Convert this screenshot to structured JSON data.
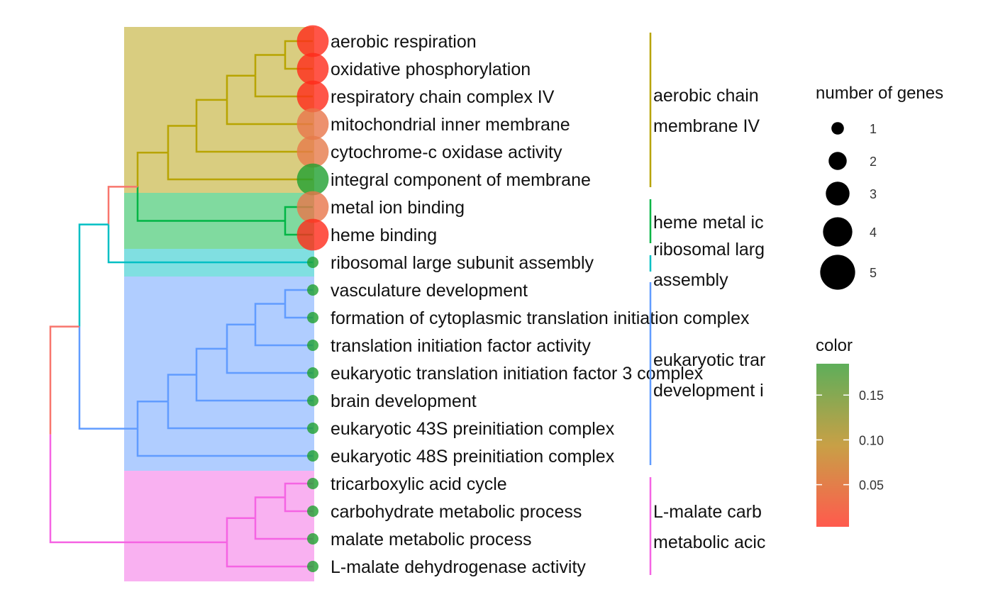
{
  "chart_data": {
    "type": "tree",
    "terms": [
      {
        "label": "aerobic respiration",
        "genes": 5,
        "color_value": 0.005
      },
      {
        "label": "oxidative phosphorylation",
        "genes": 5,
        "color_value": 0.005
      },
      {
        "label": "respiratory chain complex IV",
        "genes": 5,
        "color_value": 0.005
      },
      {
        "label": "mitochondrial inner membrane",
        "genes": 5,
        "color_value": 0.04
      },
      {
        "label": "cytochrome-c oxidase activity",
        "genes": 5,
        "color_value": 0.045
      },
      {
        "label": "integral component of membrane",
        "genes": 5,
        "color_value": 0.185
      },
      {
        "label": "metal ion binding",
        "genes": 5,
        "color_value": 0.04
      },
      {
        "label": "heme binding",
        "genes": 5,
        "color_value": 0.005
      },
      {
        "label": "ribosomal large subunit assembly",
        "genes": 1,
        "color_value": 0.185
      },
      {
        "label": "vasculature development",
        "genes": 1,
        "color_value": 0.185
      },
      {
        "label": "formation of cytoplasmic translation initiation complex",
        "genes": 1,
        "color_value": 0.185
      },
      {
        "label": "translation initiation factor activity",
        "genes": 1,
        "color_value": 0.185
      },
      {
        "label": "eukaryotic translation initiation factor 3 complex",
        "genes": 1,
        "color_value": 0.185
      },
      {
        "label": "brain development",
        "genes": 1,
        "color_value": 0.185
      },
      {
        "label": "eukaryotic 43S preinitiation complex",
        "genes": 1,
        "color_value": 0.185
      },
      {
        "label": "eukaryotic 48S preinitiation complex",
        "genes": 1,
        "color_value": 0.185
      },
      {
        "label": "tricarboxylic acid cycle",
        "genes": 1,
        "color_value": 0.185
      },
      {
        "label": "carbohydrate metabolic process",
        "genes": 1,
        "color_value": 0.185
      },
      {
        "label": "malate metabolic process",
        "genes": 1,
        "color_value": 0.185
      },
      {
        "label": "L-malate dehydrogenase activity",
        "genes": 1,
        "color_value": 0.185
      }
    ],
    "clusters": [
      {
        "first": 0,
        "last": 5,
        "color": "#b8a400",
        "fill": "#d9cd80",
        "lines": [
          "aerobic chain",
          "membrane IV"
        ]
      },
      {
        "first": 6,
        "last": 7,
        "color": "#00b545",
        "fill": "#80da9f",
        "lines": [
          "heme metal ic"
        ]
      },
      {
        "first": 8,
        "last": 8,
        "color": "#00bfc4",
        "fill": "#80dfe1",
        "lines": [
          "ribosomal larg",
          "assembly"
        ]
      },
      {
        "first": 9,
        "last": 15,
        "color": "#619cff",
        "fill": "#b0cdff",
        "lines": [
          "eukaryotic trar",
          "development i"
        ]
      },
      {
        "first": 16,
        "last": 19,
        "color": "#f564e3",
        "fill": "#f9b1f1",
        "lines": [
          "L-malate carb",
          "metabolic acic"
        ]
      }
    ],
    "size_legend": {
      "title": "number of genes",
      "values": [
        1,
        2,
        3,
        4,
        5
      ]
    },
    "color_legend": {
      "title": "color",
      "ticks": [
        0.05,
        0.1,
        0.15
      ],
      "tick_labels": [
        "0.05",
        "0.10",
        "0.15"
      ],
      "range": [
        0.003,
        0.185
      ],
      "low_color": "#ff5a4d",
      "high_color": "#5eae5a"
    },
    "colors": {
      "root_branch": "#f8766d",
      "top_branch": "#f8766d",
      "mid_branch": "#00bfc4",
      "low_branch": "#619cff",
      "malate_branch": "#f564e3",
      "point_green": "#1fa02f",
      "point_red": "#ff2a1a"
    }
  }
}
